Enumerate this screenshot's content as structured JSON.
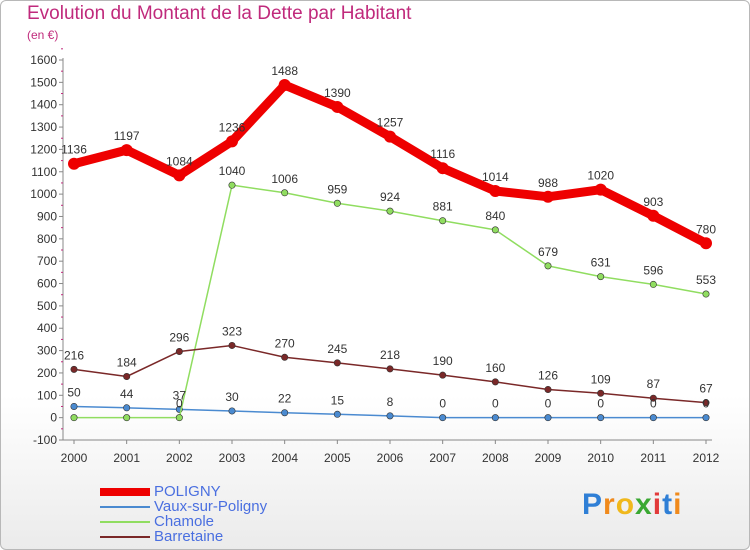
{
  "header": {
    "title": "Evolution du Montant de la Dette par Habitant",
    "subtitle": "(en €)"
  },
  "logo_text": "Proxiti",
  "colors": {
    "title": "#c02a7c",
    "axis_text": "#333333",
    "legend_text": "#4a6fe0"
  },
  "chart_data": {
    "type": "line",
    "title": "Evolution du Montant de la Dette par Habitant",
    "ylabel": "(en €)",
    "x": [
      "2000",
      "2001",
      "2002",
      "2003",
      "2004",
      "2005",
      "2006",
      "2007",
      "2008",
      "2009",
      "2010",
      "2011",
      "2012"
    ],
    "ylim": [
      -100,
      1600
    ],
    "yticks": [
      -100,
      0,
      100,
      200,
      300,
      400,
      500,
      600,
      700,
      800,
      900,
      1000,
      1100,
      1200,
      1300,
      1400,
      1500,
      1600
    ],
    "grid": false,
    "legend_position": "bottom-left",
    "series": [
      {
        "name": "POLIGNY",
        "color": "#ee0000",
        "values": [
          1136,
          1197,
          1084,
          1236,
          1488,
          1390,
          1257,
          1116,
          1014,
          988,
          1020,
          903,
          780
        ],
        "labels": [
          "1136",
          "1197",
          "1084",
          "1236",
          "1488",
          "1390",
          "1257",
          "1116",
          "1014",
          "988",
          "1020",
          "903",
          "780"
        ]
      },
      {
        "name": "Vaux-sur-Poligny",
        "color": "#4a8ad0",
        "values": [
          50,
          44,
          37,
          30,
          22,
          15,
          8,
          0,
          0,
          0,
          0,
          0,
          0
        ],
        "labels": [
          "50",
          "44",
          "37",
          "30",
          "22",
          "15",
          "8",
          "0",
          "0",
          "0",
          "0",
          "0",
          "0"
        ]
      },
      {
        "name": "Chamole",
        "color": "#90dd60",
        "values": [
          0,
          0,
          0,
          1040,
          1006,
          959,
          924,
          881,
          840,
          679,
          631,
          596,
          553
        ],
        "labels": [
          "",
          "",
          "0",
          "1040",
          "1006",
          "959",
          "924",
          "881",
          "840",
          "679",
          "631",
          "596",
          "553"
        ]
      },
      {
        "name": "Barretaine",
        "color": "#7a2828",
        "values": [
          216,
          184,
          296,
          323,
          270,
          245,
          218,
          190,
          160,
          126,
          109,
          87,
          67
        ],
        "labels": [
          "216",
          "184",
          "296",
          "323",
          "270",
          "245",
          "218",
          "190",
          "160",
          "126",
          "109",
          "87",
          "67"
        ]
      }
    ]
  }
}
